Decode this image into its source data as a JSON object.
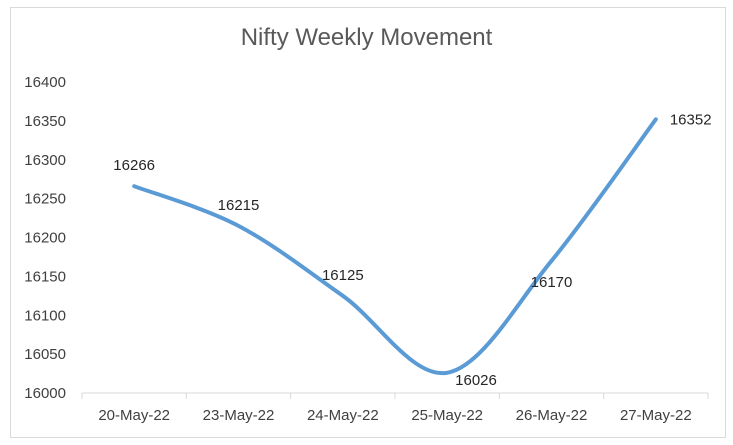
{
  "chart_data": {
    "type": "line",
    "title": "Nifty Weekly Movement",
    "xlabel": "",
    "ylabel": "",
    "categories": [
      "20-May-22",
      "23-May-22",
      "24-May-22",
      "25-May-22",
      "26-May-22",
      "27-May-22"
    ],
    "series": [
      {
        "values": [
          16266,
          16215,
          16125,
          16026,
          16170,
          16352
        ],
        "color": "#5b9bd5"
      }
    ],
    "ylim": [
      16000,
      16400
    ],
    "yticks": [
      16000,
      16050,
      16100,
      16150,
      16200,
      16250,
      16300,
      16350,
      16400
    ],
    "grid": false,
    "legend": "none",
    "smooth": true
  }
}
